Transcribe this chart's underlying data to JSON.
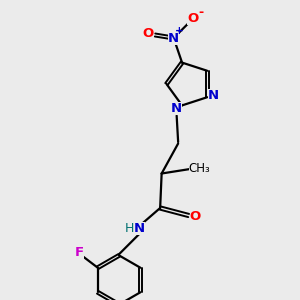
{
  "bg_color": "#ebebeb",
  "bond_color": "#000000",
  "atom_colors": {
    "N": "#0000cc",
    "O": "#ff0000",
    "F": "#cc00cc",
    "H": "#007070"
  },
  "line_width": 1.6,
  "font_size": 9.5
}
